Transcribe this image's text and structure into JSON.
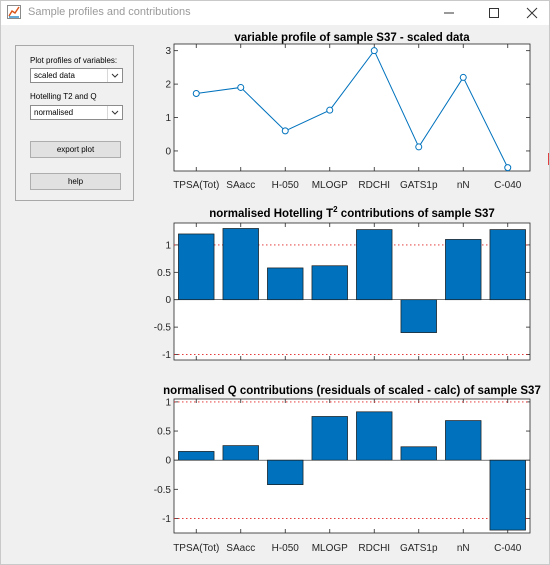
{
  "window": {
    "title": "Sample profiles and contributions"
  },
  "controls": {
    "profile_label": "Plot profiles of variables:",
    "profile_value": "scaled data",
    "hotelling_label": "Hotelling T2 and Q",
    "hotelling_value": "normalised",
    "export_label": "export plot",
    "help_label": "help"
  },
  "chart_data": [
    {
      "type": "line",
      "title": "variable profile of sample S37 - scaled data",
      "categories": [
        "TPSA(Tot)",
        "SAacc",
        "H-050",
        "MLOGP",
        "RDCHI",
        "GATS1p",
        "nN",
        "C-040"
      ],
      "values": [
        1.72,
        1.9,
        0.6,
        1.22,
        3.0,
        0.12,
        2.2,
        -0.5
      ],
      "ylim": [
        -0.6,
        3.2
      ],
      "yticks": [
        0,
        1,
        2,
        3
      ],
      "color": "#0072bd"
    },
    {
      "type": "bar",
      "title": "normalised Hotelling T",
      "title_sup": "2",
      "title_rest": " contributions of sample S37",
      "categories": [
        "TPSA(Tot)",
        "SAacc",
        "H-050",
        "MLOGP",
        "RDCHI",
        "GATS1p",
        "nN",
        "C-040"
      ],
      "values": [
        1.2,
        1.3,
        0.58,
        0.62,
        1.28,
        -0.6,
        1.1,
        1.28
      ],
      "ylim": [
        -1.1,
        1.4
      ],
      "yticks": [
        1,
        0.5,
        0,
        -0.5,
        -1
      ],
      "ytick_labels": [
        "1",
        "0.5",
        "0",
        "-0.5",
        "-1"
      ],
      "reference_lines": [
        1,
        -1
      ],
      "color": "#0072bd",
      "reference_color": "#e02020"
    },
    {
      "type": "bar",
      "title": "normalised Q contributions (residuals of scaled - calc) of sample S37",
      "categories": [
        "TPSA(Tot)",
        "SAacc",
        "H-050",
        "MLOGP",
        "RDCHI",
        "GATS1p",
        "nN",
        "C-040"
      ],
      "values": [
        0.15,
        0.25,
        -0.42,
        0.75,
        0.83,
        0.23,
        0.68,
        -1.2
      ],
      "ylim": [
        -1.25,
        1.05
      ],
      "yticks": [
        1,
        0.5,
        0,
        -0.5,
        -1
      ],
      "ytick_labels": [
        "1",
        "0.5",
        "0",
        "-0.5",
        "-1"
      ],
      "reference_lines": [
        1,
        -1
      ],
      "color": "#0072bd",
      "reference_color": "#e02020"
    }
  ]
}
